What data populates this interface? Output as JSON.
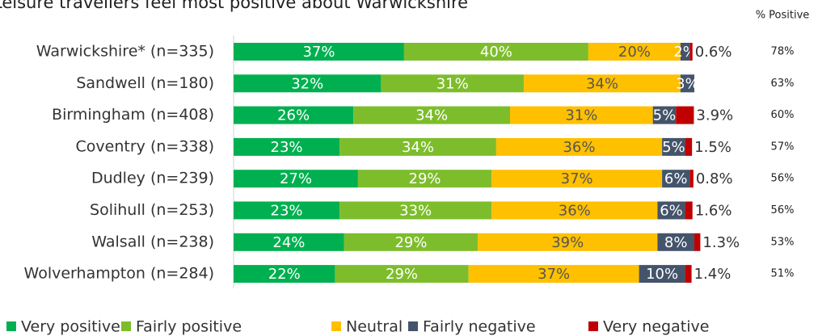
{
  "chart_data": {
    "type": "stacked-bar",
    "title": "Leisure travellers feel most positive about Warwickshire",
    "categories": [
      "Warwickshire* (n=335)",
      "Sandwell (n=180)",
      "Birmingham (n=408)",
      "Coventry (n=338)",
      "Dudley (n=239)",
      "Solihull (n=253)",
      "Walsall (n=238)",
      "Wolverhampton (n=284)"
    ],
    "xlim": [
      0,
      100
    ],
    "series": [
      {
        "name": "Very positive",
        "color": "#00b050",
        "values": [
          37,
          32,
          26,
          23,
          27,
          23,
          24,
          22
        ],
        "value_labels": [
          "37%",
          "32%",
          "26%",
          "23%",
          "27%",
          "23%",
          "24%",
          "22%"
        ]
      },
      {
        "name": "Fairly positive",
        "color": "#7dbd2b",
        "values": [
          40,
          31,
          34,
          34,
          29,
          33,
          29,
          29
        ],
        "value_labels": [
          "40%",
          "31%",
          "34%",
          "34%",
          "29%",
          "33%",
          "29%",
          "29%"
        ]
      },
      {
        "name": "Neutral",
        "color": "#ffc000",
        "values": [
          20,
          34,
          31,
          36,
          37,
          36,
          39,
          37
        ],
        "value_labels": [
          "20%",
          "34%",
          "31%",
          "36%",
          "37%",
          "36%",
          "39%",
          "37%"
        ]
      },
      {
        "name": "Fairly negative",
        "color": "#44546a",
        "values": [
          2,
          3,
          5,
          5,
          6,
          6,
          8,
          10
        ],
        "value_labels": [
          "2%",
          "3%",
          "5%",
          "5%",
          "6%",
          "6%",
          "8%",
          "10%"
        ]
      },
      {
        "name": "Very negative",
        "color": "#c00000",
        "values": [
          0.6,
          0,
          3.9,
          1.5,
          0.8,
          1.6,
          1.3,
          1.4
        ],
        "value_labels": [
          "0.6%",
          null,
          "3.9%",
          "1.5%",
          "0.8%",
          "1.6%",
          "1.3%",
          "1.4%"
        ]
      }
    ],
    "positive": {
      "title": "% Positive",
      "values": [
        78,
        63,
        60,
        57,
        56,
        56,
        53,
        51
      ],
      "value_labels": [
        "78%",
        "63%",
        "60%",
        "57%",
        "56%",
        "56%",
        "53%",
        "51%"
      ]
    }
  }
}
